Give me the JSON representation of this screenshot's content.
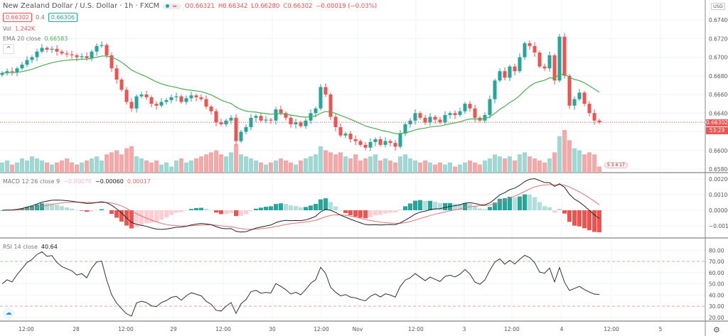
{
  "header": {
    "title": "New Zealand Dollar / U.S. Dollar · 1h · FXCM",
    "open": "O0.66321",
    "high": "H0.66342",
    "low": "L0.66280",
    "close": "C0.66302",
    "change": "−0.00019 (−0.03%)",
    "sell_price": "0.66302",
    "spread": "0.4",
    "buy_price": "0.66306"
  },
  "indicators": {
    "vol_label": "Vol",
    "vol_value": "1.242K",
    "ema_label": "EMA 20 close",
    "ema_value": "0.66583",
    "macd_label": "MACD 12 26 close 9",
    "macd_hist": "−0.00078",
    "macd_value": "−0.00060",
    "macd_signal": "0.00017",
    "rsi_label": "RSI 14 close",
    "rsi_value": "40.64",
    "collapse_icon": "^"
  },
  "price_axis": {
    "currency": "USD",
    "ticks": [
      "0.67400",
      "0.67200",
      "0.67000",
      "0.66800",
      "0.66600",
      "0.66400",
      "0.66000",
      "0.65800"
    ],
    "current_price": "0.66302",
    "countdown": "53:29"
  },
  "macd_axis": {
    "ticks": [
      "0.00200",
      "0.00100",
      "0.00000",
      "−0.00100"
    ]
  },
  "rsi_axis": {
    "ticks": [
      "80.00",
      "70.00",
      "60.00",
      "50.00",
      "40.00",
      "30.00",
      "20.00"
    ]
  },
  "time_axis": {
    "ticks": [
      "12:00",
      "28",
      "12:00",
      "29",
      "12:00",
      "30",
      "12:00",
      "Nov",
      "12:00",
      "3",
      "12:00",
      "4",
      "12:00",
      "5",
      "12:00"
    ]
  },
  "events_badge": "5 3 4 17",
  "colors": {
    "up": "#26a69a",
    "down": "#ef5350",
    "ema": "#4caf50",
    "macd": "#222222",
    "signal": "#e57373",
    "rsi": "#333333"
  },
  "chart_data": {
    "type": "candlestick",
    "symbol": "NZDUSD",
    "interval": "1h",
    "ylim": [
      0.658,
      0.675
    ],
    "close": [
      0.6683,
      0.6685,
      0.6684,
      0.6688,
      0.6692,
      0.6697,
      0.67,
      0.6706,
      0.671,
      0.6708,
      0.6709,
      0.6706,
      0.6704,
      0.6703,
      0.6702,
      0.67,
      0.6701,
      0.6699,
      0.6706,
      0.6712,
      0.6713,
      0.6702,
      0.6688,
      0.6676,
      0.6665,
      0.6652,
      0.6645,
      0.6658,
      0.666,
      0.6657,
      0.665,
      0.6648,
      0.6652,
      0.6654,
      0.6657,
      0.6658,
      0.6652,
      0.6656,
      0.6659,
      0.6657,
      0.6655,
      0.6647,
      0.6642,
      0.663,
      0.6628,
      0.6632,
      0.6635,
      0.661,
      0.662,
      0.6625,
      0.6635,
      0.6637,
      0.6632,
      0.6633,
      0.6632,
      0.6644,
      0.664,
      0.6635,
      0.6628,
      0.663,
      0.6626,
      0.6632,
      0.664,
      0.6645,
      0.6668,
      0.666,
      0.6636,
      0.6625,
      0.6616,
      0.6618,
      0.6612,
      0.661,
      0.6606,
      0.6603,
      0.6609,
      0.6612,
      0.6606,
      0.661,
      0.6608,
      0.6604,
      0.6618,
      0.6628,
      0.6632,
      0.664,
      0.6635,
      0.663,
      0.6636,
      0.6633,
      0.663,
      0.6638,
      0.664,
      0.6638,
      0.6642,
      0.665,
      0.6645,
      0.6635,
      0.6632,
      0.6638,
      0.6655,
      0.6675,
      0.6685,
      0.6678,
      0.669,
      0.6685,
      0.67,
      0.6715,
      0.6712,
      0.6705,
      0.669,
      0.6688,
      0.6702,
      0.6675,
      0.6722,
      0.668,
      0.6648,
      0.6655,
      0.6662,
      0.665,
      0.664,
      0.6632,
      0.66302
    ],
    "volume": [
      0.5,
      0.6,
      0.4,
      0.5,
      0.7,
      0.6,
      0.8,
      0.7,
      0.6,
      0.5,
      0.4,
      0.5,
      0.6,
      0.7,
      0.5,
      0.4,
      0.5,
      0.6,
      0.7,
      0.8,
      0.6,
      0.9,
      1.0,
      1.1,
      0.9,
      1.2,
      1.3,
      0.8,
      0.7,
      0.6,
      0.5,
      0.6,
      0.4,
      0.5,
      0.3,
      0.6,
      0.7,
      0.5,
      0.6,
      0.7,
      0.8,
      0.9,
      1.0,
      1.1,
      0.9,
      0.8,
      1.0,
      1.4,
      0.9,
      0.8,
      0.7,
      0.6,
      0.5,
      0.4,
      0.5,
      0.6,
      0.7,
      0.6,
      0.5,
      0.4,
      0.6,
      0.7,
      0.8,
      0.9,
      1.3,
      1.1,
      1.0,
      0.9,
      1.0,
      0.8,
      0.7,
      0.9,
      0.6,
      0.7,
      0.8,
      0.9,
      0.6,
      0.7,
      0.6,
      0.5,
      0.8,
      0.9,
      0.7,
      0.6,
      0.5,
      0.6,
      0.5,
      0.4,
      0.5,
      0.4,
      0.5,
      0.3,
      0.4,
      0.5,
      0.6,
      0.5,
      0.4,
      0.6,
      0.7,
      0.9,
      0.8,
      0.7,
      0.8,
      0.6,
      0.9,
      1.0,
      0.8,
      0.7,
      0.6,
      0.5,
      0.7,
      1.0,
      1.8,
      2.1,
      1.6,
      1.2,
      1.1,
      0.9,
      1.0,
      0.9,
      0.3
    ]
  }
}
